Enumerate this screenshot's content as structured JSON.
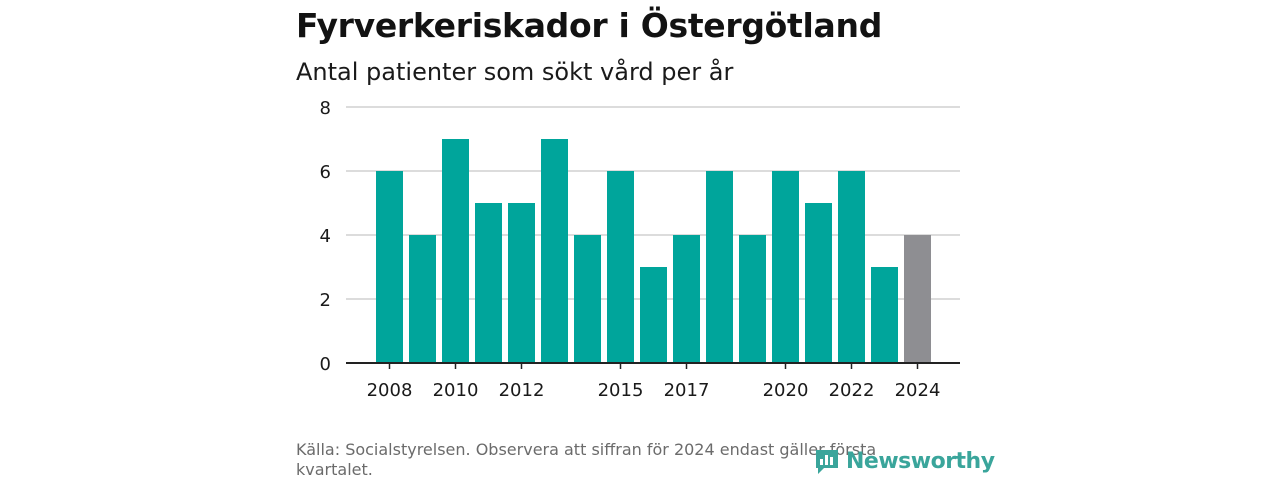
{
  "title": "Fyrverkeriskador i Östergötland",
  "subtitle": "Antal patienter som sökt vård per år",
  "source": "Källa: Socialstyrelsen. Observera att siffran för 2024 endast gäller första kvartalet.",
  "logo_text": "Newsworthy",
  "colors": {
    "bar": "#00a59b",
    "bar_partial": "#8e8e92",
    "grid": "#dcdcdc",
    "axis": "#222222",
    "logo": "#3aa59b"
  },
  "chart_data": {
    "type": "bar",
    "title": "Fyrverkeriskador i Östergötland",
    "subtitle": "Antal patienter som sökt vård per år",
    "xlabel": "",
    "ylabel": "",
    "ylim": [
      0,
      8
    ],
    "yticks": [
      0,
      2,
      4,
      6,
      8
    ],
    "xtick_labels": [
      "2008",
      "2010",
      "2012",
      "2015",
      "2017",
      "2020",
      "2022",
      "2024"
    ],
    "categories": [
      "2008",
      "2009",
      "2010",
      "2011",
      "2012",
      "2013",
      "2014",
      "2015",
      "2016",
      "2017",
      "2018",
      "2019",
      "2020",
      "2021",
      "2022",
      "2023",
      "2024"
    ],
    "values": [
      6,
      4,
      7,
      5,
      5,
      7,
      4,
      6,
      3,
      4,
      6,
      4,
      6,
      5,
      6,
      3,
      4
    ],
    "highlight": {
      "category": "2024",
      "color": "#8e8e92"
    },
    "grid": true,
    "legend": "none"
  }
}
